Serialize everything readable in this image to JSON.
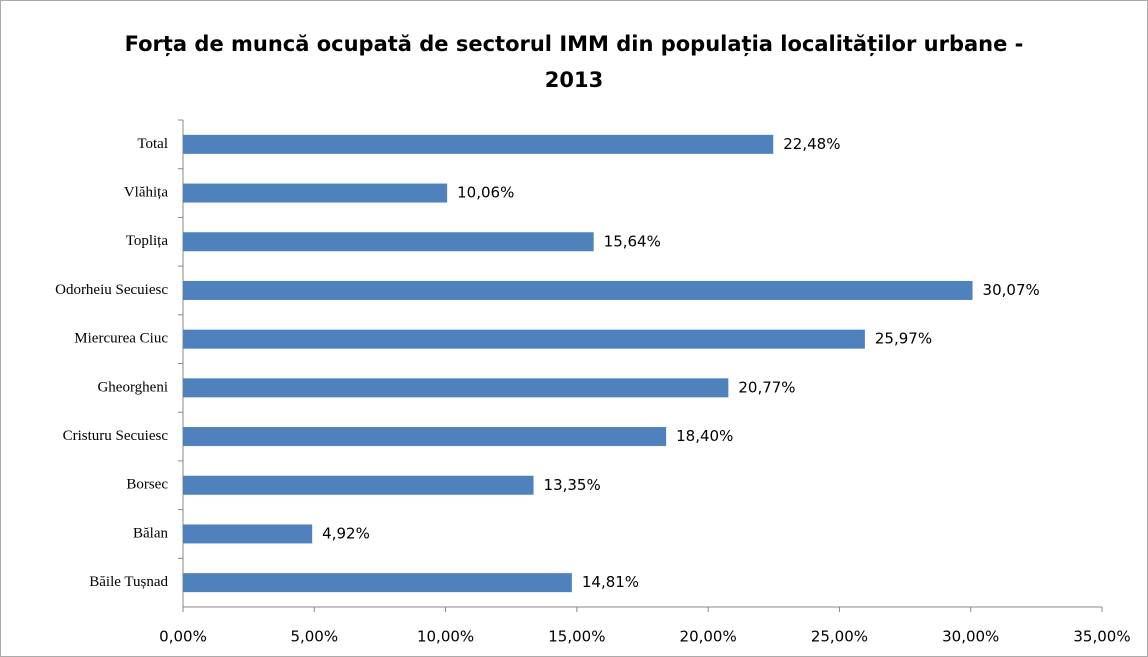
{
  "chart_data": {
    "type": "bar",
    "orientation": "horizontal",
    "title": "Forța de muncă ocupată de sectorul IMM din populația localităților urbane - 2013",
    "categories": [
      "Total",
      "Vlăhița",
      "Toplița",
      "Odorheiu Secuiesc",
      "Miercurea Ciuc",
      "Gheorgheni",
      "Cristuru Secuiesc",
      "Borsec",
      "Bălan",
      "Băile Tușnad"
    ],
    "values": [
      22.48,
      10.06,
      15.64,
      30.07,
      25.97,
      20.77,
      18.4,
      13.35,
      4.92,
      14.81
    ],
    "value_labels": [
      "22,48%",
      "10,06%",
      "15,64%",
      "30,07%",
      "25,97%",
      "20,77%",
      "18,40%",
      "13,35%",
      "4,92%",
      "14,81%"
    ],
    "color": "#4f81bd",
    "xlim": [
      0,
      35
    ],
    "xticks": [
      {
        "value": 0,
        "label": "0,00%"
      },
      {
        "value": 5,
        "label": "5,00%"
      },
      {
        "value": 10,
        "label": "10,00%"
      },
      {
        "value": 15,
        "label": "15,00%"
      },
      {
        "value": 20,
        "label": "20,00%"
      },
      {
        "value": 25,
        "label": "25,00%"
      },
      {
        "value": 30,
        "label": "30,00%"
      },
      {
        "value": 35,
        "label": "35,00%"
      }
    ],
    "grid": false
  }
}
